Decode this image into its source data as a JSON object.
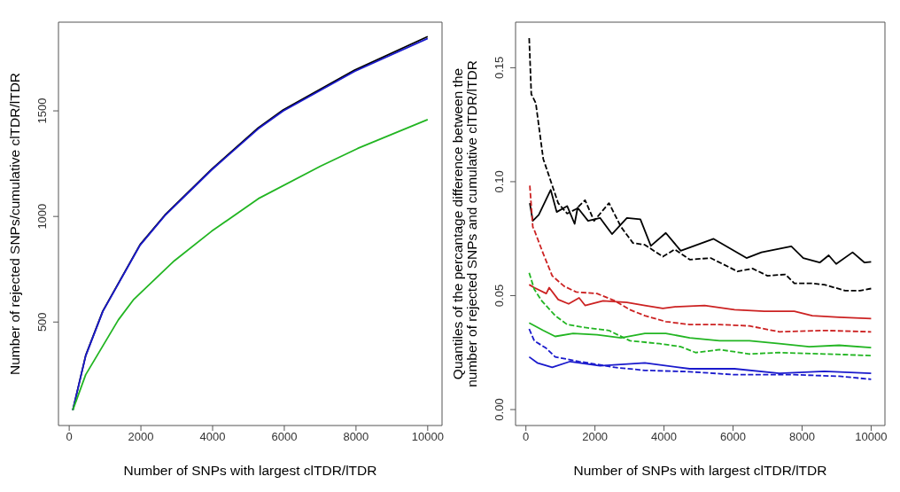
{
  "chart_data": [
    {
      "type": "line",
      "xlabel": "Number of SNPs with largest clTDR/lTDR",
      "ylabel": "Number of rejected SNPs/cumulative clTDR/lTDR",
      "xlim": [
        -300,
        10400
      ],
      "ylim": [
        10,
        1920
      ],
      "xticks": [
        0,
        2000,
        4000,
        6000,
        8000,
        10000
      ],
      "yticks": [
        500,
        1000,
        1500
      ],
      "grid": false,
      "marker": "none",
      "series": [
        {
          "color": "#000000",
          "line_style": "solid",
          "x": [
            100,
            460,
            937,
            1977,
            2671,
            3972,
            5273,
            5967,
            7962,
            10000
          ],
          "values": [
            83,
            342,
            552,
            867,
            1007,
            1224,
            1420,
            1504,
            1693,
            1852
          ]
        },
        {
          "color": "#1a1acc",
          "line_style": "solid",
          "x": [
            100,
            460,
            937,
            1977,
            2671,
            3972,
            5273,
            5967,
            7962,
            10000
          ],
          "values": [
            83,
            340,
            550,
            864,
            1004,
            1220,
            1415,
            1499,
            1687,
            1843
          ]
        },
        {
          "color": "#22b522",
          "line_style": "solid",
          "x": [
            100,
            460,
            1370,
            1804,
            2931,
            3972,
            5273,
            7007,
            8048,
            10000
          ],
          "values": [
            83,
            251,
            510,
            608,
            790,
            930,
            1084,
            1238,
            1322,
            1459
          ]
        }
      ]
    },
    {
      "type": "line",
      "xlabel": "Number of SNPs with largest clTDR/lTDR",
      "ylabel": "Quantiles of the percantage difference between the\nnumber of rejected SNPs and cumulative clTDR/lTDR",
      "xlim": [
        -300,
        10400
      ],
      "ylim": [
        -0.007,
        0.17
      ],
      "xticks": [
        0,
        2000,
        4000,
        6000,
        8000,
        10000
      ],
      "yticks": [
        {
          "value": 0,
          "label": "0.00"
        },
        0.05,
        {
          "value": 0.1,
          "label": "0.10"
        },
        0.15
      ],
      "grid": false,
      "marker": "none",
      "series": [
        {
          "color": "#000000",
          "line_style": "solid",
          "x": [
            113,
            199,
            372,
            719,
            892,
            1195,
            1411,
            1498,
            1801,
            2147,
            2494,
            2926,
            3316,
            3619,
            4052,
            4485,
            5437,
            6390,
            6823,
            7688,
            8035,
            8511,
            8771,
            8987,
            9463,
            9810,
            10000
          ],
          "values": [
            0.0906,
            0.0828,
            0.0854,
            0.0964,
            0.0867,
            0.0893,
            0.0815,
            0.0886,
            0.0828,
            0.0841,
            0.077,
            0.0841,
            0.0835,
            0.0718,
            0.0775,
            0.0697,
            0.0749,
            0.0665,
            0.069,
            0.0716,
            0.0665,
            0.0645,
            0.0677,
            0.0639,
            0.069,
            0.0645,
            0.0648
          ]
        },
        {
          "color": "#000000",
          "line_style": "dashed",
          "x": [
            95,
            156,
            286,
            502,
            719,
            935,
            1195,
            1455,
            1714,
            1974,
            2407,
            2753,
            3100,
            3446,
            3965,
            4312,
            4745,
            5351,
            5870,
            6130,
            6563,
            6996,
            7515,
            7775,
            8294,
            8641,
            9247,
            9680,
            10000
          ],
          "values": [
            0.163,
            0.1384,
            0.1345,
            0.11,
            0.1003,
            0.0906,
            0.086,
            0.088,
            0.0919,
            0.0828,
            0.0906,
            0.0802,
            0.0731,
            0.0723,
            0.0671,
            0.0703,
            0.0658,
            0.0665,
            0.0626,
            0.0606,
            0.0619,
            0.0587,
            0.0593,
            0.0554,
            0.0554,
            0.0548,
            0.0522,
            0.0522,
            0.0531
          ]
        },
        {
          "color": "#cc2222",
          "line_style": "solid",
          "x": [
            95,
            242,
            589,
            675,
            935,
            1238,
            1541,
            1714,
            2234,
            2926,
            3446,
            3965,
            4312,
            5177,
            6043,
            6909,
            7775,
            8294,
            9074,
            10000
          ],
          "values": [
            0.0548,
            0.0535,
            0.0509,
            0.0535,
            0.0483,
            0.0464,
            0.049,
            0.0457,
            0.0477,
            0.047,
            0.0457,
            0.0444,
            0.0451,
            0.0457,
            0.0438,
            0.0431,
            0.0431,
            0.0412,
            0.0405,
            0.0399
          ]
        },
        {
          "color": "#cc2222",
          "line_style": "dashed",
          "x": [
            113,
            199,
            242,
            502,
            762,
            1108,
            1455,
            2061,
            2580,
            3013,
            3446,
            4052,
            4745,
            5610,
            6476,
            7342,
            8641,
            10000
          ],
          "values": [
            0.0983,
            0.0802,
            0.0788,
            0.0684,
            0.0587,
            0.0541,
            0.0516,
            0.0509,
            0.0477,
            0.0438,
            0.0412,
            0.0386,
            0.0373,
            0.0373,
            0.0367,
            0.0341,
            0.0347,
            0.0341
          ]
        },
        {
          "color": "#22b522",
          "line_style": "solid",
          "x": [
            95,
            502,
            848,
            1368,
            2061,
            2753,
            3446,
            4052,
            4745,
            5610,
            6476,
            7342,
            8208,
            9074,
            10000
          ],
          "values": [
            0.038,
            0.0347,
            0.0321,
            0.0334,
            0.0328,
            0.0315,
            0.0334,
            0.0334,
            0.0315,
            0.0302,
            0.0302,
            0.0289,
            0.0276,
            0.0282,
            0.0272
          ]
        },
        {
          "color": "#22b522",
          "line_style": "dashed",
          "x": [
            95,
            242,
            459,
            848,
            1195,
            1714,
            2407,
            3013,
            3879,
            4485,
            4918,
            5610,
            6476,
            7342,
            8641,
            10000
          ],
          "values": [
            0.06,
            0.0528,
            0.0477,
            0.0412,
            0.0373,
            0.036,
            0.0347,
            0.0302,
            0.0289,
            0.0276,
            0.025,
            0.0263,
            0.0244,
            0.025,
            0.0244,
            0.0237
          ]
        },
        {
          "color": "#1a1acc",
          "line_style": "solid",
          "x": [
            95,
            329,
            762,
            1281,
            2147,
            3446,
            4745,
            6043,
            7342,
            8641,
            10000
          ],
          "values": [
            0.0231,
            0.0205,
            0.0185,
            0.0211,
            0.0192,
            0.0205,
            0.0179,
            0.0179,
            0.0159,
            0.0168,
            0.0159
          ]
        },
        {
          "color": "#1a1acc",
          "line_style": "dashed",
          "x": [
            95,
            242,
            589,
            848,
            1541,
            2580,
            3446,
            4745,
            6043,
            7775,
            9074,
            10000
          ],
          "values": [
            0.0354,
            0.0302,
            0.0269,
            0.0231,
            0.0211,
            0.0185,
            0.0172,
            0.0166,
            0.0153,
            0.0153,
            0.0146,
            0.0133
          ]
        }
      ]
    }
  ]
}
